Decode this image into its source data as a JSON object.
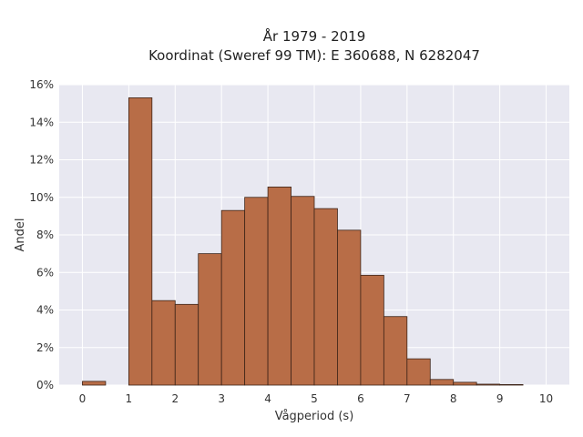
{
  "chart_data": {
    "type": "bar",
    "title_line1": "År 1979 - 2019",
    "title_line2": "Koordinat (Sweref 99 TM): E 360688, N 6282047",
    "xlabel": "Vågperiod (s)",
    "ylabel": "Andel",
    "xlim": [
      -0.5,
      10.5
    ],
    "ylim": [
      0,
      16
    ],
    "x_ticks": [
      "0",
      "1",
      "2",
      "3",
      "4",
      "5",
      "6",
      "7",
      "8",
      "9",
      "10"
    ],
    "y_ticks": [
      "0%",
      "2%",
      "4%",
      "6%",
      "8%",
      "10%",
      "12%",
      "14%",
      "16%"
    ],
    "bin_width": 0.5,
    "bins": [
      {
        "x0": 0.0,
        "value": 0.2
      },
      {
        "x0": 0.5,
        "value": 0.0
      },
      {
        "x0": 1.0,
        "value": 15.3
      },
      {
        "x0": 1.5,
        "value": 4.5
      },
      {
        "x0": 2.0,
        "value": 4.3
      },
      {
        "x0": 2.5,
        "value": 7.0
      },
      {
        "x0": 3.0,
        "value": 9.3
      },
      {
        "x0": 3.5,
        "value": 10.0
      },
      {
        "x0": 4.0,
        "value": 10.55
      },
      {
        "x0": 4.5,
        "value": 10.05
      },
      {
        "x0": 5.0,
        "value": 9.4
      },
      {
        "x0": 5.5,
        "value": 8.25
      },
      {
        "x0": 6.0,
        "value": 5.85
      },
      {
        "x0": 6.5,
        "value": 3.65
      },
      {
        "x0": 7.0,
        "value": 1.4
      },
      {
        "x0": 7.5,
        "value": 0.3
      },
      {
        "x0": 8.0,
        "value": 0.15
      },
      {
        "x0": 8.5,
        "value": 0.05
      },
      {
        "x0": 9.0,
        "value": 0.03
      }
    ],
    "grid": true,
    "colors": {
      "bar_fill": "#b86d47",
      "bar_stroke": "#3d2418",
      "plot_background": "#e8e8f1",
      "grid_line": "#ffffff"
    }
  }
}
